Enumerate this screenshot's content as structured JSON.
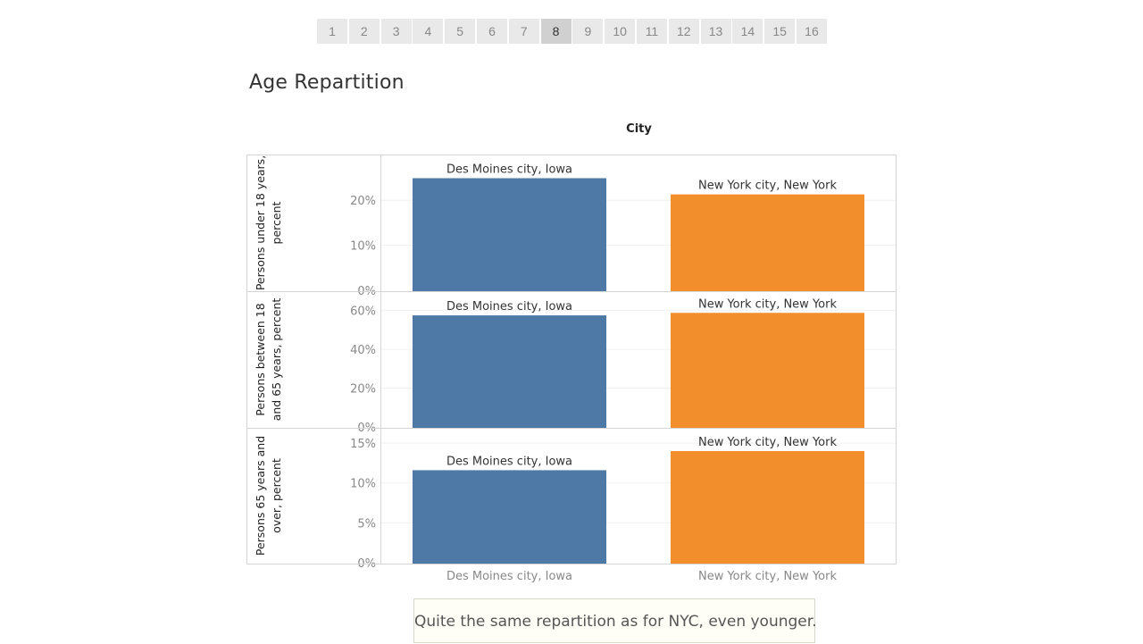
{
  "pagination": {
    "pages": [
      "1",
      "2",
      "3",
      "4",
      "5",
      "6",
      "7",
      "8",
      "9",
      "10",
      "11",
      "12",
      "13",
      "14",
      "15",
      "16"
    ],
    "active": "8"
  },
  "title": "Age Repartition",
  "annotation": "Quite the same repartition as for NYC, even younger.",
  "colors": {
    "des_moines": "#4e79a7",
    "new_york": "#f28e2b"
  },
  "chart_data": {
    "type": "bar",
    "column_header": "City",
    "categories": [
      "Des Moines city, Iowa",
      "New York city, New York"
    ],
    "panels": [
      {
        "label_lines": [
          "Persons under 18 years,",
          "percent"
        ],
        "ylim": [
          0,
          25
        ],
        "ticks": [
          {
            "v": 0,
            "t": "0%"
          },
          {
            "v": 10,
            "t": "10%"
          },
          {
            "v": 20,
            "t": "20%"
          }
        ],
        "values": [
          24.9,
          21.3
        ]
      },
      {
        "label_lines": [
          "Persons between 18",
          "and 65 years, percent"
        ],
        "ylim": [
          0,
          58
        ],
        "ticks": [
          {
            "v": 0,
            "t": "0%"
          },
          {
            "v": 20,
            "t": "20%"
          },
          {
            "v": 40,
            "t": "40%"
          },
          {
            "v": 60,
            "t": "60%"
          }
        ],
        "values": [
          57.5,
          58.8
        ]
      },
      {
        "label_lines": [
          "Persons 65 years and",
          "over, percent"
        ],
        "ylim": [
          0,
          14.0
        ],
        "ticks": [
          {
            "v": 0,
            "t": "0%"
          },
          {
            "v": 5,
            "t": "5%"
          },
          {
            "v": 10,
            "t": "10%"
          },
          {
            "v": 15,
            "t": "15%"
          }
        ],
        "values": [
          11.6,
          14.0
        ]
      }
    ]
  }
}
